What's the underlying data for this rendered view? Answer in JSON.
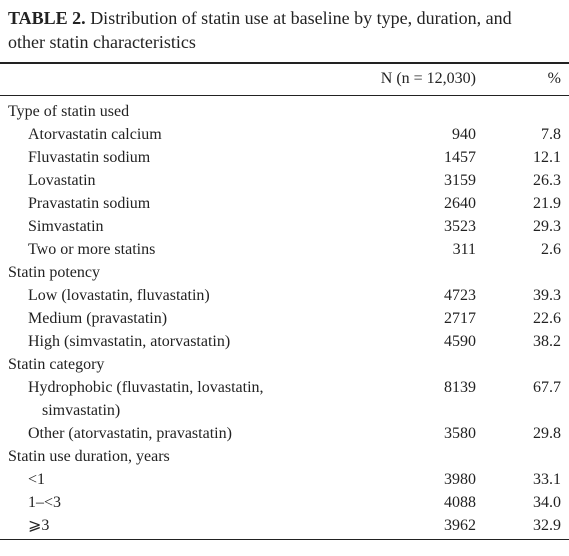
{
  "header": {
    "label": "TABLE 2.",
    "title": "Distribution of statin use at baseline by type, duration, and other statin characteristics"
  },
  "table": {
    "columns": [
      "N (n = 12,030)",
      "%"
    ],
    "sections": [
      {
        "title": "Type of statin used",
        "rows": [
          {
            "label": "Atorvastatin calcium",
            "n": "940",
            "pct": "7.8"
          },
          {
            "label": "Fluvastatin sodium",
            "n": "1457",
            "pct": "12.1"
          },
          {
            "label": "Lovastatin",
            "n": "3159",
            "pct": "26.3"
          },
          {
            "label": "Pravastatin sodium",
            "n": "2640",
            "pct": "21.9"
          },
          {
            "label": "Simvastatin",
            "n": "3523",
            "pct": "29.3"
          },
          {
            "label": "Two or more statins",
            "n": "311",
            "pct": "2.6"
          }
        ]
      },
      {
        "title": "Statin potency",
        "rows": [
          {
            "label": "Low (lovastatin, fluvastatin)",
            "n": "4723",
            "pct": "39.3"
          },
          {
            "label": "Medium (pravastatin)",
            "n": "2717",
            "pct": "22.6"
          },
          {
            "label": "High (simvastatin, atorvastatin)",
            "n": "4590",
            "pct": "38.2"
          }
        ]
      },
      {
        "title": "Statin category",
        "rows": [
          {
            "label": "Hydrophobic (fluvastatin, lovastatin, simvastatin)",
            "n": "8139",
            "pct": "67.7"
          },
          {
            "label": "Other (atorvastatin, pravastatin)",
            "n": "3580",
            "pct": "29.8"
          }
        ]
      },
      {
        "title": "Statin use duration, years",
        "rows": [
          {
            "label": "<1",
            "n": "3980",
            "pct": "33.1"
          },
          {
            "label": "1–<3",
            "n": "4088",
            "pct": "34.0"
          },
          {
            "label": "⩾3",
            "n": "3962",
            "pct": "32.9"
          }
        ]
      }
    ]
  }
}
